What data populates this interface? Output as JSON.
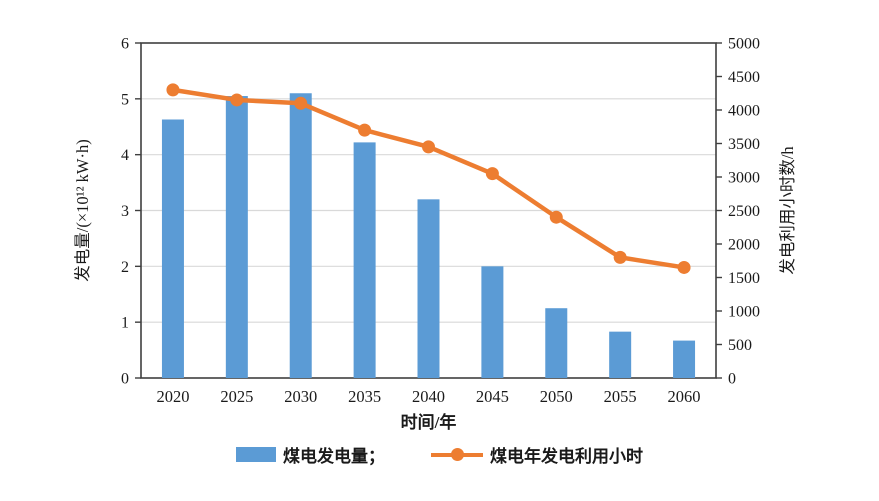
{
  "chart_data": {
    "type": "bar+line combo",
    "title": "",
    "categories": [
      "2020",
      "2025",
      "2030",
      "2035",
      "2040",
      "2045",
      "2050",
      "2055",
      "2060"
    ],
    "series": [
      {
        "name": "煤电发电量",
        "type": "bar",
        "axis": "left",
        "color": "#5b9bd5",
        "values": [
          4.63,
          5.05,
          5.1,
          4.22,
          3.2,
          2.0,
          1.25,
          0.83,
          0.67
        ]
      },
      {
        "name": "煤电年发电利用小时",
        "type": "line",
        "axis": "right",
        "color": "#ed7d31",
        "values": [
          4300,
          4150,
          4100,
          3700,
          3450,
          3050,
          2400,
          1800,
          1650
        ]
      }
    ],
    "left_axis": {
      "label": "发电量/(×10¹² kW·h)",
      "min": 0,
      "max": 6,
      "ticks": [
        0,
        1,
        2,
        3,
        4,
        5,
        6
      ]
    },
    "right_axis": {
      "label": "发电利用小时数/h",
      "min": 0,
      "max": 5000,
      "ticks": [
        0,
        500,
        1000,
        1500,
        2000,
        2500,
        3000,
        3500,
        4000,
        4500,
        5000
      ]
    },
    "x_axis": {
      "label": "时间/年"
    },
    "grid": "horizontal, light gray, at left-axis integers",
    "legend_position": "bottom"
  },
  "legend": {
    "items": [
      {
        "label": "煤电发电量；",
        "marker": "bar-swatch",
        "color": "#5b9bd5"
      },
      {
        "label": "煤电年发电利用小时",
        "marker": "line-dot-swatch",
        "color": "#ed7d31"
      }
    ]
  },
  "colors": {
    "bar": "#5b9bd5",
    "line": "#ed7d31",
    "axis": "#3f3f3f",
    "gridline": "#d9d9d9",
    "text": "#1a1a1a",
    "background": "#ffffff"
  }
}
